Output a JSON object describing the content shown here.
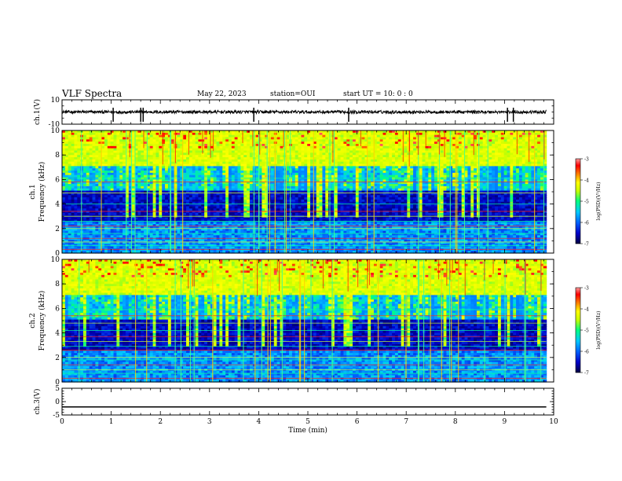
{
  "header": {
    "title": "VLF Spectra",
    "date": "May 22, 2023",
    "station": "station=OUI",
    "start_ut": "start  UT =   10: 0  : 0"
  },
  "chart_data": [
    {
      "type": "line",
      "panel": "ch1-waveform",
      "ylabel": "ch.1(V)",
      "ylim": [
        -10,
        10
      ],
      "yticks": [
        "10",
        "-10"
      ],
      "xlim": [
        0,
        10
      ],
      "series": [
        {
          "values_description_free": true,
          "baseline": 0,
          "noise_amplitude": 1.5,
          "spikes_at_min": [
            1.04,
            1.6,
            1.65,
            3.9,
            5.83,
            9.06,
            9.18
          ]
        }
      ]
    },
    {
      "type": "heatmap",
      "panel": "ch1-spectrogram",
      "ylabel_top": "ch.1",
      "ylabel": "Frequency (kHz)",
      "ylim": [
        0,
        10
      ],
      "yticks": [
        "0",
        "2",
        "4",
        "6",
        "8",
        "10"
      ],
      "xlim": [
        0,
        10
      ],
      "data_end_min": 9.85,
      "colorbar": {
        "label": "log(PSD)(V²/Hz)",
        "ticks": [
          "-3",
          "-4",
          "-5",
          "-6",
          "-7"
        ],
        "range": [
          -7,
          -3
        ]
      },
      "lines_khz": [
        0.3,
        0.6,
        0.9,
        1.2,
        1.6,
        2.0,
        2.2,
        2.6,
        3.0,
        3.4,
        4.0,
        4.9,
        5.8,
        6.1
      ]
    },
    {
      "type": "heatmap",
      "panel": "ch2-spectrogram",
      "ylabel_top": "ch.2",
      "ylabel": "Frequency (kHz)",
      "ylim": [
        0,
        10
      ],
      "yticks": [
        "0",
        "2",
        "4",
        "6",
        "8",
        "10"
      ],
      "xlim": [
        0,
        10
      ],
      "data_end_min": 9.85,
      "colorbar": {
        "label": "log(PSD)(V²/Hz)",
        "ticks": [
          "-3",
          "-4",
          "-5",
          "-6",
          "-7"
        ],
        "range": [
          -7,
          -3
        ]
      },
      "lines_khz": [
        0.3,
        0.7,
        1.0,
        1.4,
        1.8,
        2.0,
        2.6,
        2.9,
        3.3,
        3.7,
        4.2,
        4.8,
        5.4,
        5.9
      ]
    },
    {
      "type": "line",
      "panel": "ch3-waveform",
      "ylabel": "ch.3(V)",
      "ylim": [
        -5,
        5
      ],
      "yticks": [
        "5",
        "0",
        "-5"
      ],
      "xlim": [
        0,
        10
      ],
      "series": [
        {
          "constant_value": -2
        }
      ]
    }
  ],
  "xaxis": {
    "label": "Time (min)",
    "ticks": [
      "0",
      "1",
      "2",
      "3",
      "4",
      "5",
      "6",
      "7",
      "8",
      "9",
      "10"
    ]
  },
  "colors": {
    "background": "#ffffff",
    "axes": "#000000",
    "colormap": [
      "#000040",
      "#0000c8",
      "#0064ff",
      "#00c8ff",
      "#00ff80",
      "#c8ff00",
      "#ffff00",
      "#ff8000",
      "#ff0000",
      "#ffa0a0"
    ]
  }
}
